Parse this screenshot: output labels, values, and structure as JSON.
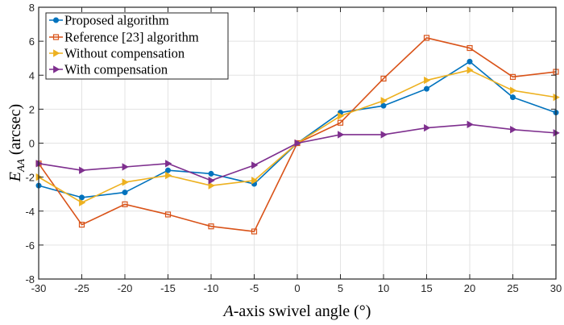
{
  "chart_data": {
    "type": "line",
    "title": "",
    "xlabel_italic": "A",
    "xlabel_rest": "-axis swivel angle (°)",
    "xlabel": "A-axis swivel angle (°)",
    "ylabel_main": "E",
    "ylabel_sub": "AA",
    "ylabel_unit": " (arcsec)",
    "ylabel": "E_AA (arcsec)",
    "xlim": [
      -30,
      30
    ],
    "ylim": [
      -8,
      8
    ],
    "grid": true,
    "legend_position": "top-left",
    "x": [
      -30,
      -25,
      -20,
      -15,
      -10,
      -5,
      0,
      5,
      10,
      15,
      20,
      25,
      30
    ],
    "xticks": [
      "-30",
      "-25",
      "-20",
      "-15",
      "-10",
      "-5",
      "0",
      "5",
      "10",
      "15",
      "20",
      "25",
      "30"
    ],
    "yticks": [
      "-8",
      "-6",
      "-4",
      "-2",
      "0",
      "2",
      "4",
      "6",
      "8"
    ],
    "series": [
      {
        "name": "Proposed algorithm",
        "color": "#0072BD",
        "marker": "circle",
        "values": [
          -2.5,
          -3.2,
          -2.9,
          -1.6,
          -1.8,
          -2.4,
          0,
          1.8,
          2.2,
          3.2,
          4.8,
          2.7,
          1.8
        ]
      },
      {
        "name": "Reference [23] algorithm",
        "color": "#D95319",
        "marker": "square",
        "values": [
          -1.2,
          -4.8,
          -3.6,
          -4.2,
          -4.9,
          -5.2,
          0,
          1.2,
          3.8,
          6.2,
          5.6,
          3.9,
          4.2
        ]
      },
      {
        "name": "Without compensation",
        "color": "#EDB120",
        "marker": "triangle-right",
        "values": [
          -2.0,
          -3.5,
          -2.3,
          -1.9,
          -2.5,
          -2.2,
          0,
          1.6,
          2.5,
          3.7,
          4.3,
          3.1,
          2.7
        ]
      },
      {
        "name": "With compensation",
        "color": "#7E2F8E",
        "marker": "triangle-right",
        "values": [
          -1.2,
          -1.6,
          -1.4,
          -1.2,
          -2.2,
          -1.3,
          0,
          0.5,
          0.5,
          0.9,
          1.1,
          0.8,
          0.6
        ]
      }
    ]
  }
}
